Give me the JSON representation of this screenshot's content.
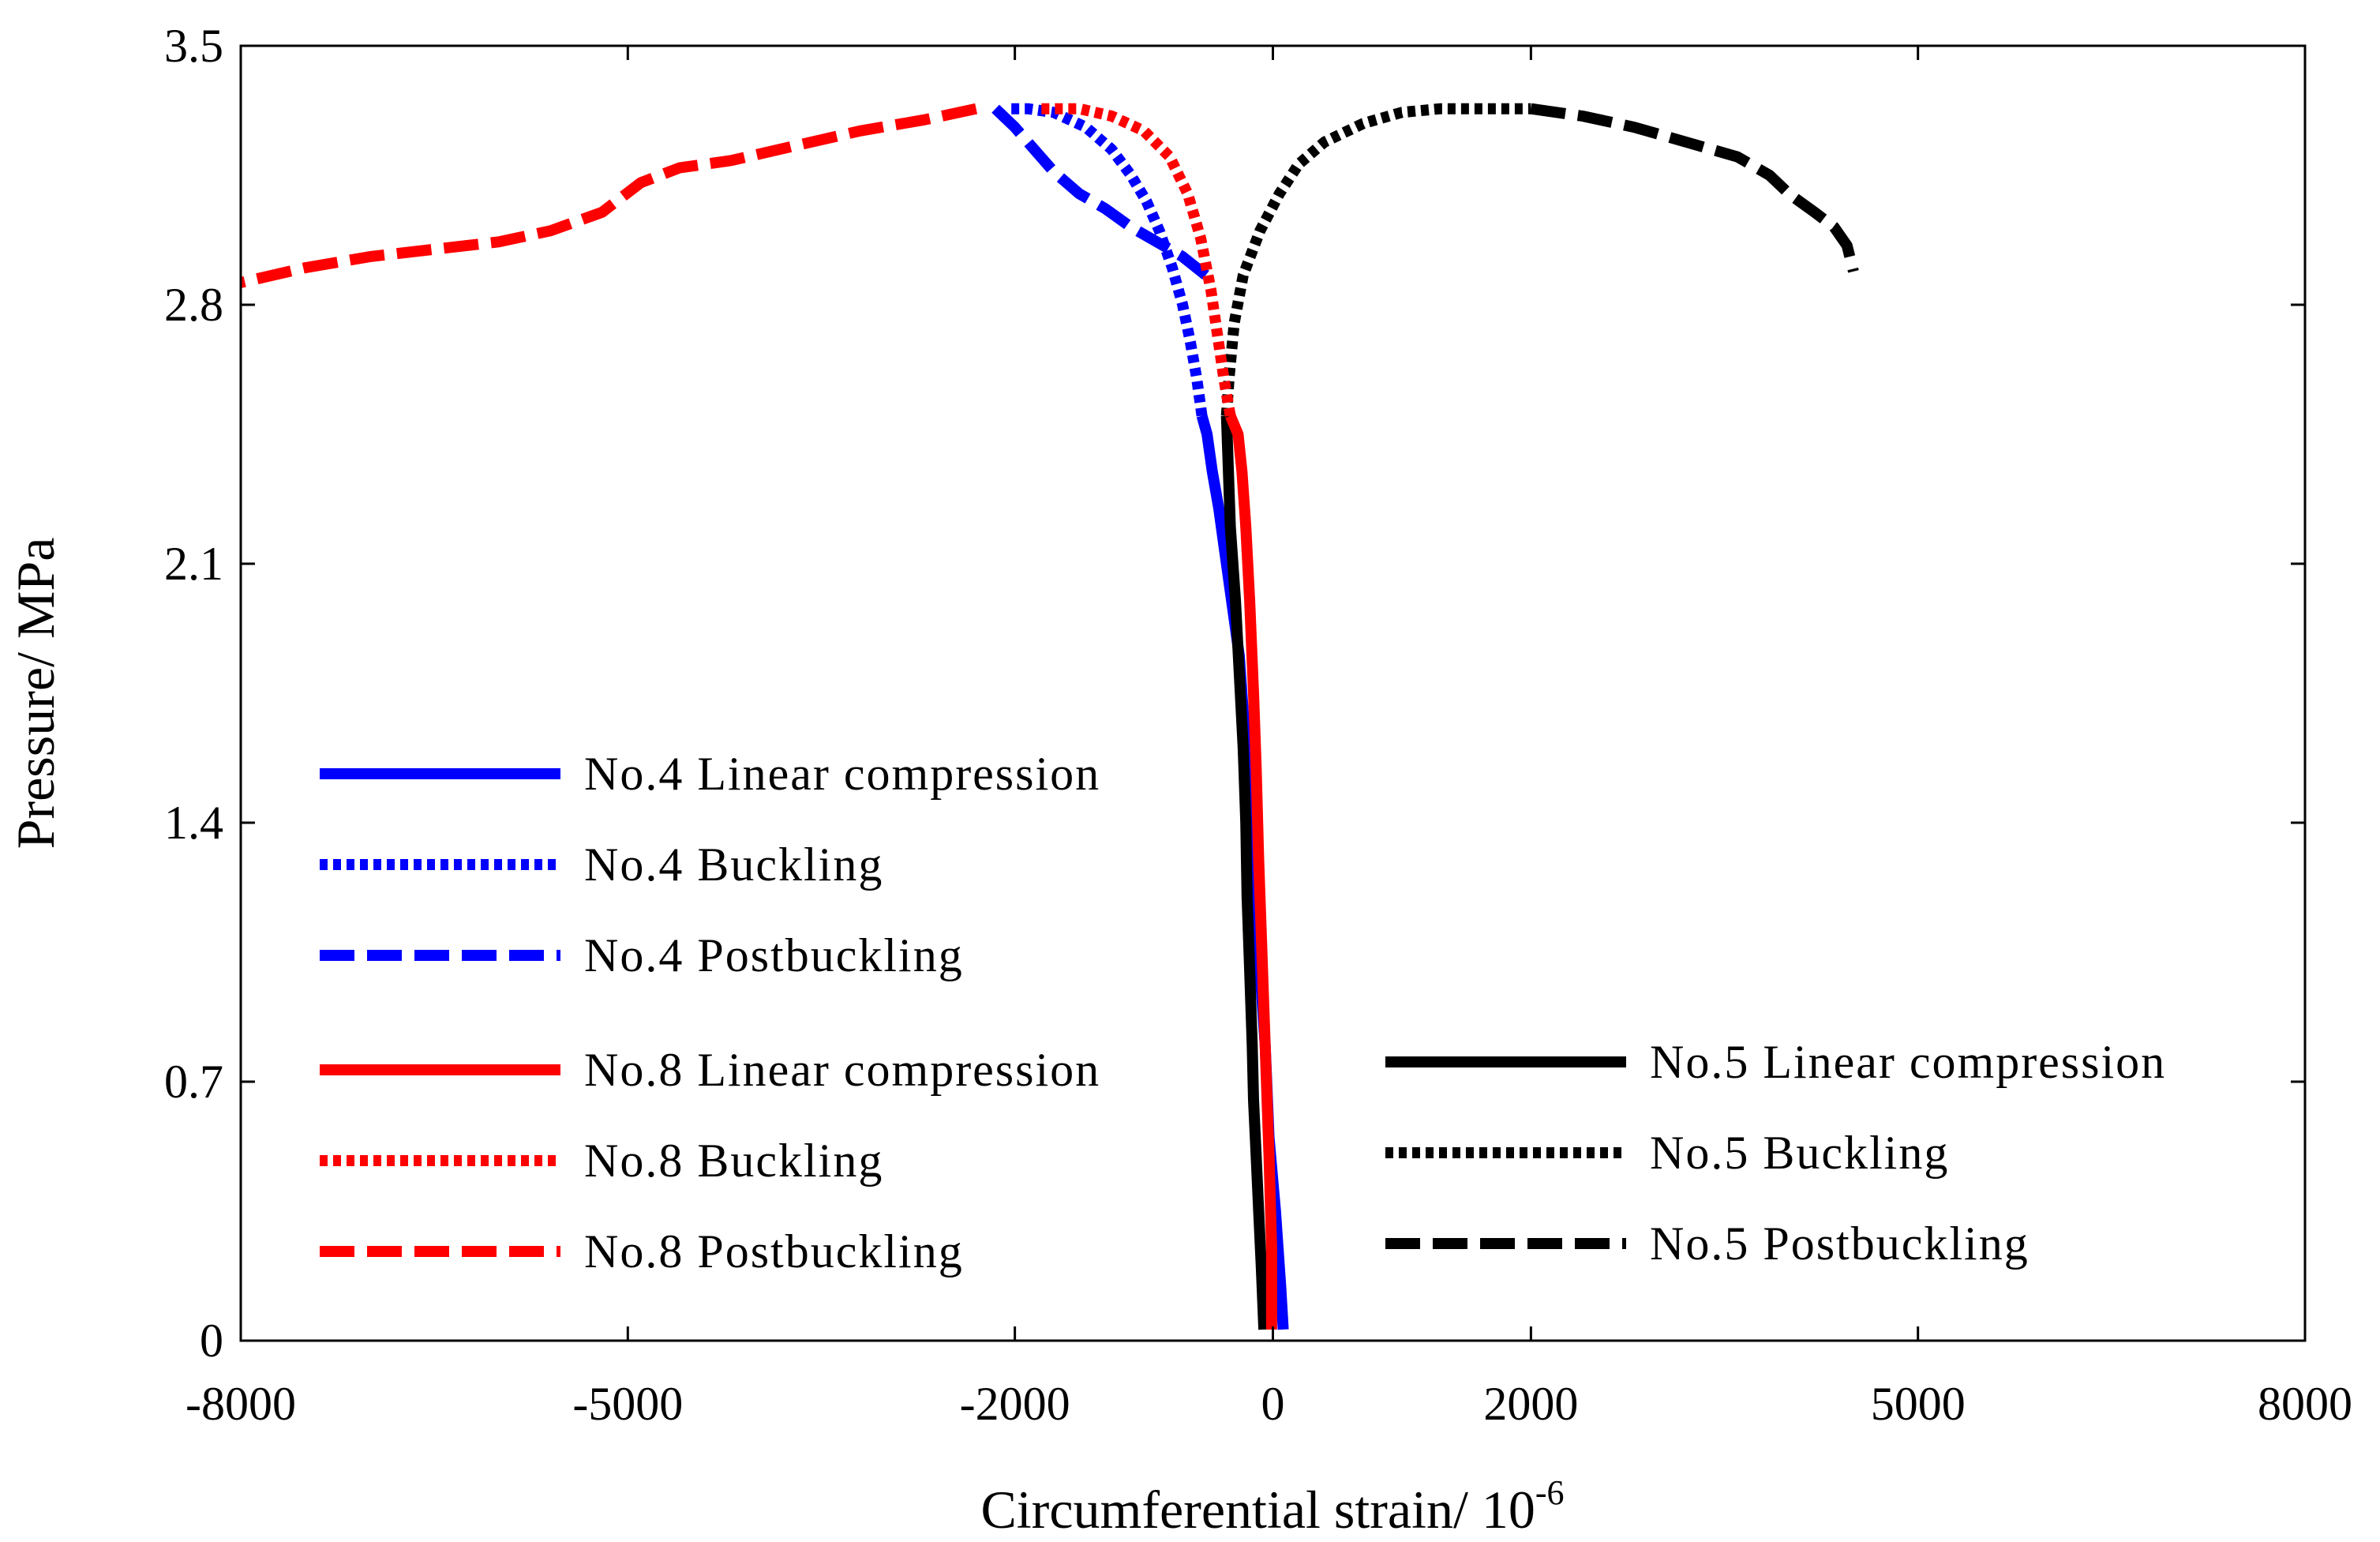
{
  "chart_data": {
    "type": "line",
    "title": "",
    "xlabel": "Circumferential strain/ 10",
    "xlabel_superscript": "-6",
    "ylabel": "Pressure/ MPa",
    "xlim": [
      -8000,
      8000
    ],
    "ylim": [
      0,
      3.5
    ],
    "xticks": [
      -8000,
      -5000,
      -2000,
      0,
      2000,
      5000,
      8000
    ],
    "xtick_labels": [
      "-8000",
      "-5000",
      "-2000",
      "0",
      "2000",
      "5000",
      "8000"
    ],
    "yticks": [
      0,
      0.7,
      1.4,
      2.1,
      2.8,
      3.5
    ],
    "ytick_labels": [
      "0",
      "0.7",
      "1.4",
      "2.1",
      "2.8",
      "3.5"
    ],
    "grid": false,
    "legend_placement": "lower-left and lower-right",
    "series": [
      {
        "name": "No.4 Linear compression",
        "color": "#0000ff",
        "style": "solid",
        "x": [
          80,
          60,
          20,
          -30,
          -60,
          -100,
          -150,
          -180,
          -220,
          -260,
          -320,
          -380,
          -420,
          -470,
          -510,
          -550
        ],
        "y": [
          0.03,
          0.15,
          0.35,
          0.55,
          0.8,
          1.0,
          1.2,
          1.45,
          1.65,
          1.85,
          2.0,
          2.15,
          2.25,
          2.35,
          2.45,
          2.5
        ]
      },
      {
        "name": "No.4 Buckling",
        "color": "#0000ff",
        "style": "dotted",
        "x": [
          -550,
          -590,
          -640,
          -700,
          -780,
          -880,
          -980,
          -1100,
          -1250,
          -1450,
          -1700,
          -1900,
          -2050
        ],
        "y": [
          2.5,
          2.6,
          2.7,
          2.8,
          2.9,
          3.0,
          3.08,
          3.15,
          3.22,
          3.28,
          3.32,
          3.33,
          3.33
        ]
      },
      {
        "name": "No.4 Postbuckling",
        "color": "#0000ff",
        "style": "dashed",
        "x": [
          -2150,
          -2000,
          -1850,
          -1700,
          -1500,
          -1300,
          -1100,
          -900,
          -700,
          -520
        ],
        "y": [
          3.33,
          3.28,
          3.22,
          3.16,
          3.1,
          3.06,
          3.01,
          2.97,
          2.93,
          2.88
        ]
      },
      {
        "name": "No.5 Linear compression",
        "color": "#000000",
        "style": "solid",
        "x": [
          -70,
          -90,
          -110,
          -130,
          -150,
          -160,
          -180,
          -200,
          -210,
          -230,
          -260,
          -290,
          -330,
          -360
        ],
        "y": [
          0.03,
          0.2,
          0.35,
          0.5,
          0.65,
          0.8,
          1.0,
          1.2,
          1.4,
          1.6,
          1.8,
          2.0,
          2.2,
          2.5
        ]
      },
      {
        "name": "No.5 Buckling",
        "color": "#000000",
        "style": "dotted",
        "x": [
          -360,
          -340,
          -300,
          -230,
          -100,
          50,
          200,
          400,
          700,
          1000,
          1300,
          1600,
          2000
        ],
        "y": [
          2.5,
          2.6,
          2.75,
          2.88,
          3.0,
          3.1,
          3.18,
          3.24,
          3.29,
          3.32,
          3.33,
          3.33,
          3.33
        ]
      },
      {
        "name": "No.5 Postbuckling",
        "color": "#000000",
        "style": "dashed",
        "x": [
          2000,
          2400,
          2800,
          3200,
          3600,
          3850,
          4000,
          4200,
          4350,
          4450,
          4500
        ],
        "y": [
          3.33,
          3.31,
          3.28,
          3.24,
          3.2,
          3.15,
          3.1,
          3.05,
          3.01,
          2.96,
          2.89
        ]
      },
      {
        "name": "No.8 Linear compression",
        "color": "#ff0000",
        "style": "solid",
        "x": [
          -10,
          -10,
          -30,
          -60,
          -90,
          -110,
          -130,
          -150,
          -180,
          -210,
          -240,
          -270,
          -330
        ],
        "y": [
          0.03,
          0.25,
          0.5,
          0.8,
          1.1,
          1.3,
          1.55,
          1.75,
          2.0,
          2.2,
          2.35,
          2.45,
          2.5
        ]
      },
      {
        "name": "No.8 Buckling",
        "color": "#ff0000",
        "style": "dotted",
        "x": [
          -330,
          -380,
          -430,
          -480,
          -560,
          -660,
          -800,
          -1000,
          -1250,
          -1500,
          -1800
        ],
        "y": [
          2.5,
          2.6,
          2.72,
          2.84,
          2.98,
          3.1,
          3.2,
          3.27,
          3.31,
          3.33,
          3.33
        ]
      },
      {
        "name": "No.8 Postbuckling",
        "color": "#ff0000",
        "style": "dashed",
        "x": [
          -2300,
          -2700,
          -3200,
          -3700,
          -4200,
          -4600,
          -4900,
          -5200,
          -5600,
          -6000,
          -6500,
          -7000,
          -7500,
          -8000
        ],
        "y": [
          3.33,
          3.3,
          3.27,
          3.23,
          3.19,
          3.17,
          3.13,
          3.05,
          3.0,
          2.97,
          2.95,
          2.93,
          2.9,
          2.86
        ]
      }
    ],
    "legends": [
      {
        "id": "left",
        "placement": "lower-left",
        "entries": [
          "No.4 Linear compression",
          "No.4 Buckling",
          "No.4 Postbuckling",
          "No.8 Linear compression",
          "No.8 Buckling",
          "No.8 Postbuckling"
        ]
      },
      {
        "id": "right",
        "placement": "lower-right",
        "entries": [
          "No.5 Linear compression",
          "No.5 Buckling",
          "No.5 Postbuckling"
        ]
      }
    ]
  }
}
